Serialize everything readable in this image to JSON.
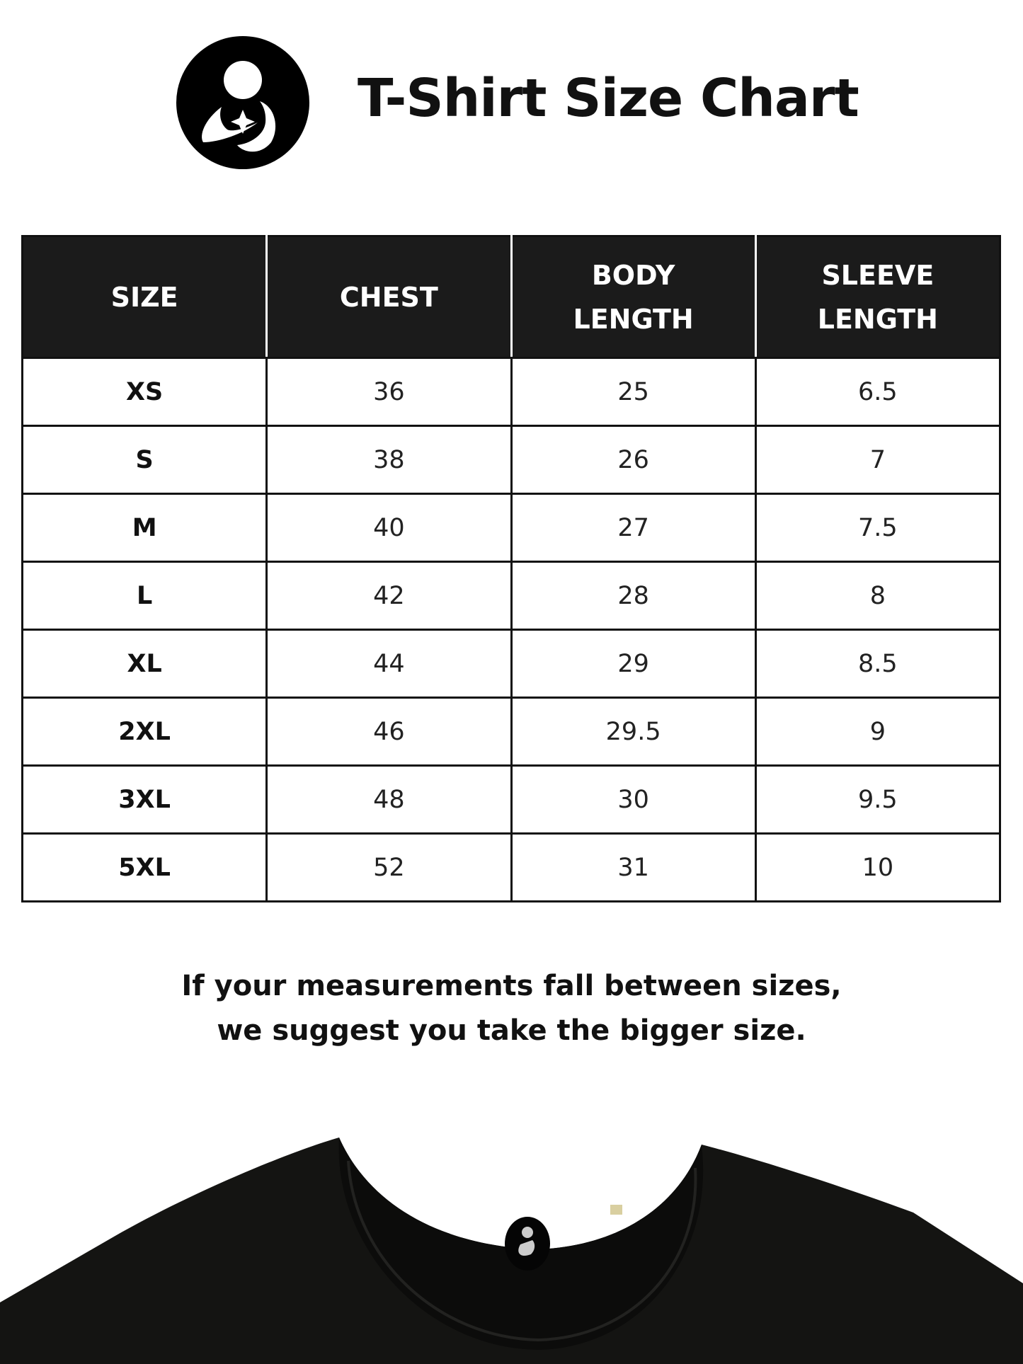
{
  "brand": {
    "logo_icon": "mother-holding-baby-logo"
  },
  "title": "T-Shirt Size Chart",
  "table": {
    "headers": [
      [
        "SIZE"
      ],
      [
        "CHEST"
      ],
      [
        "BODY",
        "LENGTH"
      ],
      [
        "SLEEVE",
        "LENGTH"
      ]
    ],
    "rows": [
      [
        "XS",
        "36",
        "25",
        "6.5"
      ],
      [
        "S",
        "38",
        "26",
        "7"
      ],
      [
        "M",
        "40",
        "27",
        "7.5"
      ],
      [
        "L",
        "42",
        "28",
        "8"
      ],
      [
        "XL",
        "44",
        "29",
        "8.5"
      ],
      [
        "2XL",
        "46",
        "29.5",
        "9"
      ],
      [
        "3XL",
        "48",
        "30",
        "9.5"
      ],
      [
        "5XL",
        "52",
        "31",
        "10"
      ]
    ]
  },
  "note": {
    "line1": "If your measurements fall between sizes,",
    "line2": "we suggest you take the bigger size."
  },
  "colors": {
    "header_bg": "#1b1b1b",
    "shirt": "#141412"
  }
}
